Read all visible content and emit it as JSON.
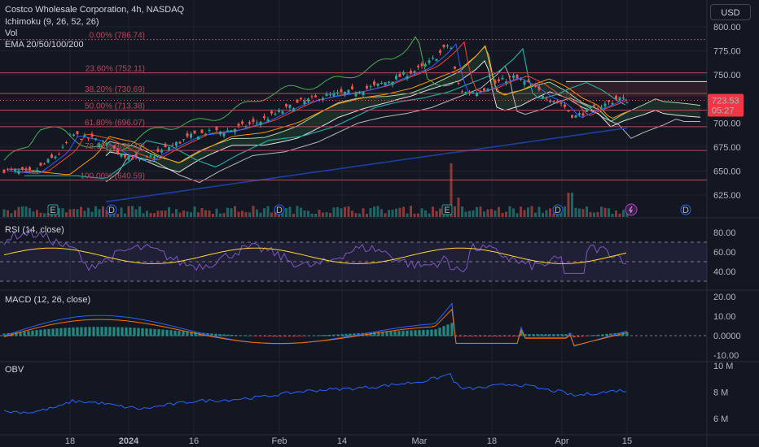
{
  "header": {
    "symbol_line": "Costco Wholesale Corporation, 4h, NASDAQ",
    "ichimoku": "Ichimoku (9, 26, 52, 26)",
    "vol": "Vol",
    "ema": "EMA 20/50/100/200"
  },
  "currency_button": "USD",
  "price_tag": {
    "price": "723.53",
    "countdown": "05:27"
  },
  "colors": {
    "background": "#131722",
    "up": "#26a69a",
    "down": "#ef5350",
    "fib_line": "#b54b57",
    "rsi": "#7e57c2",
    "macd": "#2962ff",
    "signal": "#ff6d00",
    "obv": "#2962ff"
  },
  "price_axis": [
    "800.00",
    "775.00",
    "750.00",
    "725.00",
    "700.00",
    "675.00",
    "650.00",
    "625.00"
  ],
  "fib_levels": [
    {
      "label": "0.00% (786.74)",
      "value": 786.74
    },
    {
      "label": "23.60% (752.11)",
      "value": 752.11
    },
    {
      "label": "38.20% (730.69)",
      "value": 730.69
    },
    {
      "label": "50.00% (713.38)",
      "value": 713.38
    },
    {
      "label": "61.80% (696.07)",
      "value": 696.07
    },
    {
      "label": "78.60% (671.42)",
      "value": 671.42
    },
    {
      "label": "100.00% (640.59)",
      "value": 640.59
    }
  ],
  "event_markers": [
    {
      "kind": "E",
      "x_label": "Dec 12"
    },
    {
      "kind": "D",
      "x_label": "Jan 20"
    },
    {
      "kind": "D",
      "x_label": "Feb 2"
    },
    {
      "kind": "E",
      "x_label": "Mar 7"
    },
    {
      "kind": "D",
      "x_label": "Mar 28"
    },
    {
      "kind": "lightning",
      "x_label": "Apr 15"
    },
    {
      "kind": "D",
      "x_label": "Apr 28"
    }
  ],
  "rsi": {
    "label": "RSI (14, close)",
    "axis": [
      "80.00",
      "60.00",
      "40.00"
    ]
  },
  "macd": {
    "label": "MACD (12, 26, close)",
    "axis": [
      "20.00",
      "10.00",
      "0.0000",
      "-10.00"
    ]
  },
  "obv": {
    "label": "OBV",
    "axis": [
      "10 M",
      "8 M",
      "6 M"
    ]
  },
  "time_axis": [
    "18",
    "2024",
    "16",
    "Feb",
    "14",
    "Mar",
    "18",
    "Apr",
    "15"
  ]
}
